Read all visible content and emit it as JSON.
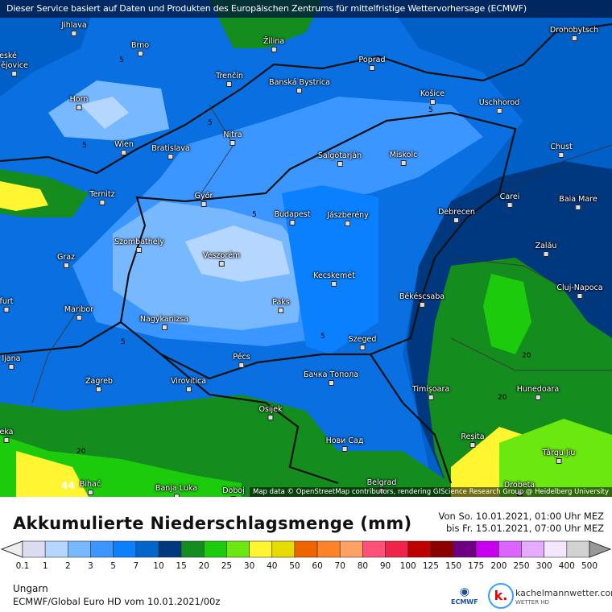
{
  "banner": "Dieser Service basiert auf Daten und Produkten des Europäischen Zentrums für mittelfristige Wettervorhersage (ECMWF)",
  "map": {
    "attribution": "Map data © OpenStreetMap contributors, rendering GIScience Research Group @ Heidelberg University",
    "cities": [
      "Jihlava",
      "Brno",
      "Žilina",
      "Poprad",
      "Drohobytsch",
      "eské",
      "ějovice",
      "Trenčín",
      "Banská Bystrica",
      "Košice",
      "Uschhorod",
      "Horn",
      "Nitra",
      "Wien",
      "Bratislava",
      "Salgótarján",
      "Miskolc",
      "Chust",
      "Ternitz",
      "Győr",
      "Budapest",
      "Jászberény",
      "Debrecen",
      "Carei",
      "Baia Mare",
      "Szombathely",
      "Veszprém",
      "Graz",
      "Zalău",
      "Kecskemét",
      "Cluj-Napoca",
      "furt",
      "Maribor",
      "Paks",
      "Békéscsaba",
      "Nagykanizsa",
      "Szeged",
      "ljana",
      "Pécs",
      "Zagreb",
      "Virovitica",
      "Бачка Топола",
      "Timișoara",
      "Hunedoara",
      "Osijek",
      "eka",
      "Reșita",
      "Нови Сад",
      "Târgu Jiu",
      "Belgrad",
      "Banja Luka",
      "Doboj",
      "Bihać",
      "Drobeta"
    ],
    "contour_labels": [
      "5",
      "5",
      "5",
      "5",
      "5",
      "5",
      "5",
      "20",
      "20",
      "20",
      "44"
    ]
  },
  "title": "Akkumulierte Niederschlagsmenge (mm)",
  "period": {
    "from": "Von So. 10.01.2021, 01:00 Uhr MEZ",
    "to": "bis Fr. 15.01.2021, 07:00 Uhr MEZ"
  },
  "legend": {
    "labels": [
      "0.1",
      "1",
      "2",
      "3",
      "5",
      "7",
      "10",
      "15",
      "20",
      "25",
      "30",
      "40",
      "50",
      "60",
      "70",
      "80",
      "90",
      "100",
      "125",
      "150",
      "175",
      "200",
      "250",
      "300",
      "400",
      "500"
    ],
    "colors": [
      "#dcdcf0",
      "#b4d6ff",
      "#78b8ff",
      "#3c96ff",
      "#0a80ff",
      "#0066cc",
      "#003880",
      "#148c1e",
      "#1ccc0c",
      "#6ae810",
      "#fff530",
      "#e6dc00",
      "#f06400",
      "#ff8228",
      "#ffa064",
      "#ff5078",
      "#f0234b",
      "#be0000",
      "#8c0000",
      "#6e0082",
      "#c800f0",
      "#dc64ff",
      "#e6aaff",
      "#f5e6ff",
      "#d2d2d2"
    ],
    "under_color": "#eeeeee",
    "over_color": "#999999"
  },
  "footer": {
    "region": "Ungarn",
    "model": "ECMWF/Global Euro HD vom  10.01.2021/00z"
  },
  "logos": {
    "ecmwf": "ECMWF",
    "kachelmann": "kachelmannwetter.com",
    "kachelmann_sub": "WETTER HD",
    "k": "k."
  }
}
